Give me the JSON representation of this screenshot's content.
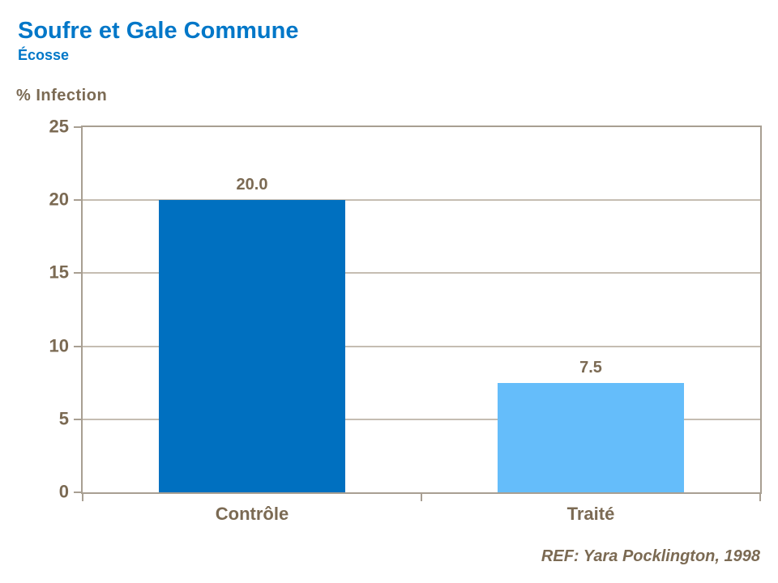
{
  "header": {
    "title": "Soufre et Gale Commune",
    "subtitle": "Écosse"
  },
  "chart_data": {
    "type": "bar",
    "title": "Soufre et Gale Commune",
    "subtitle": "Écosse",
    "ylabel": "% Infection",
    "xlabel": "",
    "categories": [
      "Contrôle",
      "Traité"
    ],
    "values": [
      20.0,
      7.5
    ],
    "value_labels": [
      "20.0",
      "7.5"
    ],
    "bar_colors": [
      "#0070C0",
      "#65BDFA"
    ],
    "ylim": [
      0,
      25
    ],
    "yticks": [
      0,
      5,
      10,
      15,
      20,
      25
    ],
    "grid": true,
    "legend": false,
    "bar_width_fraction": 0.55
  },
  "footer": {
    "reference": "REF: Yara Pocklington, 1998"
  },
  "colors": {
    "title_blue": "#0077C8",
    "text_brown": "#7B6A53",
    "axis_line": "#A89F92",
    "gridline": "#C5BDB2",
    "background": "#FFFFFF"
  }
}
